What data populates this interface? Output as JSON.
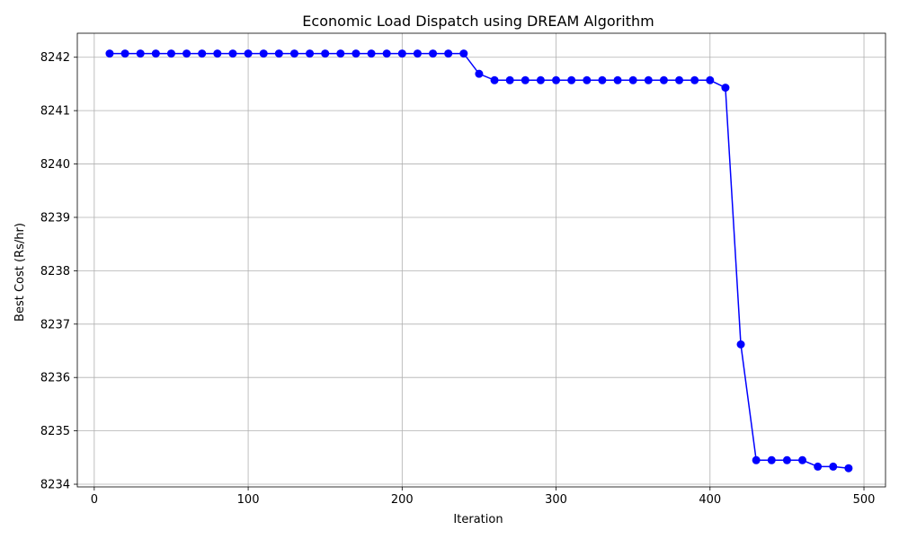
{
  "chart_data": {
    "type": "line",
    "title": "Economic Load Dispatch using DREAM Algorithm",
    "xlabel": "Iteration",
    "ylabel": "Best Cost (Rs/hr)",
    "xlim": [
      -11,
      514
    ],
    "ylim": [
      8233.95,
      8242.45
    ],
    "xticks": [
      0,
      100,
      200,
      300,
      400,
      500
    ],
    "yticks": [
      8234,
      8235,
      8236,
      8237,
      8238,
      8239,
      8240,
      8241,
      8242
    ],
    "grid": true,
    "series": [
      {
        "color": "#0000ff",
        "marker": "circle",
        "x": [
          10,
          20,
          30,
          40,
          50,
          60,
          70,
          80,
          90,
          100,
          110,
          120,
          130,
          140,
          150,
          160,
          170,
          180,
          190,
          200,
          210,
          220,
          230,
          240,
          250,
          260,
          270,
          280,
          290,
          300,
          310,
          320,
          330,
          340,
          350,
          360,
          370,
          380,
          390,
          400,
          410,
          420,
          430,
          440,
          450,
          460,
          470,
          480,
          490
        ],
        "y": [
          8242.07,
          8242.07,
          8242.07,
          8242.07,
          8242.07,
          8242.07,
          8242.07,
          8242.07,
          8242.07,
          8242.07,
          8242.07,
          8242.07,
          8242.07,
          8242.07,
          8242.07,
          8242.07,
          8242.07,
          8242.07,
          8242.07,
          8242.07,
          8242.07,
          8242.07,
          8242.07,
          8242.07,
          8241.69,
          8241.57,
          8241.57,
          8241.57,
          8241.57,
          8241.57,
          8241.57,
          8241.57,
          8241.57,
          8241.57,
          8241.57,
          8241.57,
          8241.57,
          8241.57,
          8241.57,
          8241.57,
          8241.43,
          8236.62,
          8234.45,
          8234.45,
          8234.45,
          8234.45,
          8234.33,
          8234.33,
          8234.3
        ]
      }
    ]
  }
}
